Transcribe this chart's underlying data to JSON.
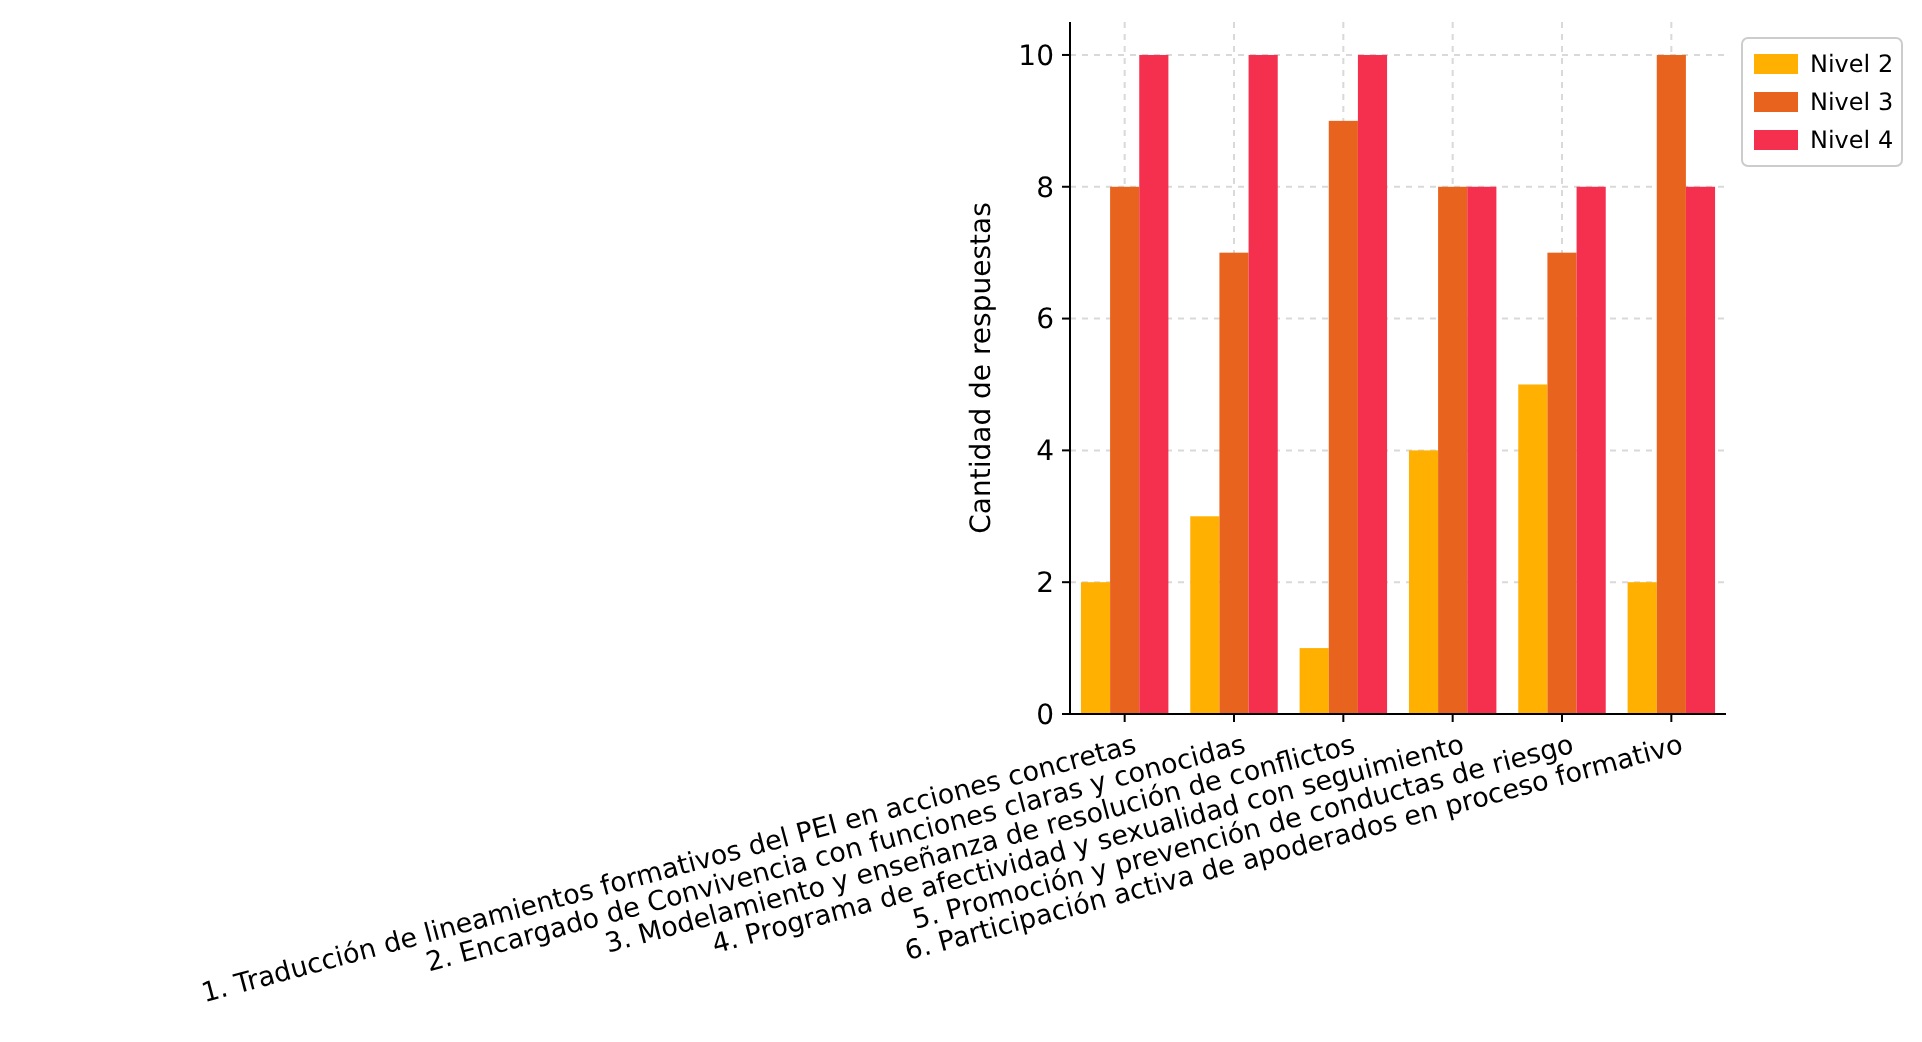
{
  "chart_data": {
    "type": "bar",
    "ylabel": "Cantidad de respuestas",
    "categories": [
      "1. Traducción de lineamientos formativos del PEI en acciones concretas",
      "2. Encargado de Convivencia con funciones claras y conocidas",
      "3. Modelamiento y enseñanza de resolución de conflictos",
      "4. Programa de afectividad y sexualidad con seguimiento",
      "5. Promoción y prevención de conductas de riesgo",
      "6. Participación activa de apoderados en proceso formativo"
    ],
    "series": [
      {
        "name": "Nivel 2",
        "color": "#ffb000",
        "values": [
          2,
          3,
          1,
          4,
          5,
          2
        ]
      },
      {
        "name": "Nivel 3",
        "color": "#e8641e",
        "values": [
          8,
          7,
          9,
          8,
          7,
          10
        ]
      },
      {
        "name": "Nivel 4",
        "color": "#f5304f",
        "values": [
          10,
          10,
          10,
          8,
          8,
          8
        ]
      }
    ],
    "ylim": [
      0,
      10.5
    ],
    "yticks": [
      0,
      2,
      4,
      6,
      8,
      10
    ],
    "grid": true,
    "legend": "right"
  }
}
